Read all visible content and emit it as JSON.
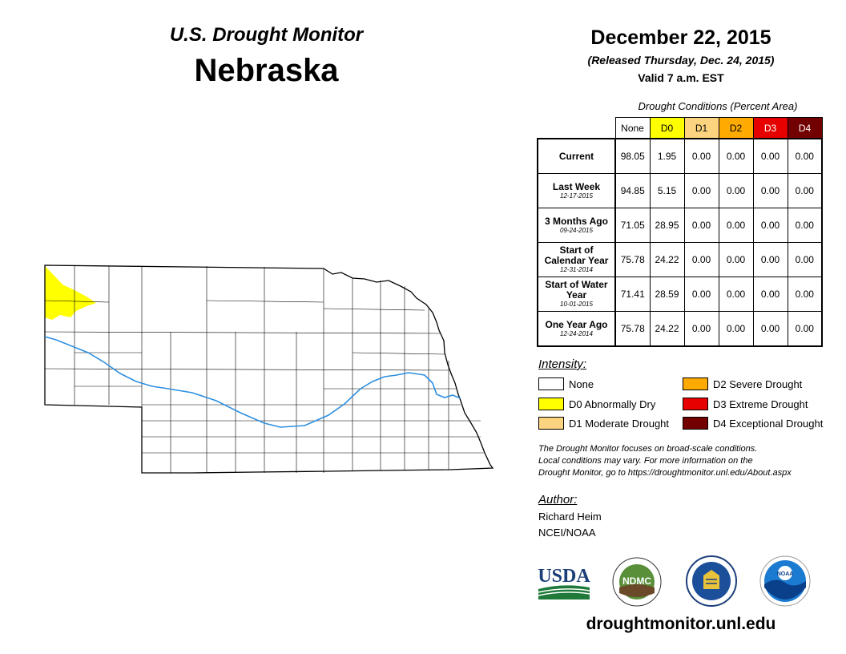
{
  "header": {
    "monitor_title": "U.S. Drought Monitor",
    "state": "Nebraska",
    "date": "December 22, 2015",
    "released": "(Released Thursday, Dec. 24, 2015)",
    "valid": "Valid 7 a.m. EST"
  },
  "table": {
    "caption": "Drought Conditions (Percent Area)",
    "columns": [
      "None",
      "D0",
      "D1",
      "D2",
      "D3",
      "D4"
    ],
    "column_colors": [
      "#ffffff",
      "#ffff00",
      "#fcd37f",
      "#ffaa00",
      "#e60000",
      "#730000"
    ],
    "column_text_colors": [
      "#000000",
      "#000000",
      "#000000",
      "#000000",
      "#ffffff",
      "#ffffff"
    ],
    "rows": [
      {
        "label": "Current",
        "sub": "",
        "values": [
          "98.05",
          "1.95",
          "0.00",
          "0.00",
          "0.00",
          "0.00"
        ]
      },
      {
        "label": "Last Week",
        "sub": "12-17-2015",
        "values": [
          "94.85",
          "5.15",
          "0.00",
          "0.00",
          "0.00",
          "0.00"
        ]
      },
      {
        "label": "3 Months Ago",
        "sub": "09-24-2015",
        "values": [
          "71.05",
          "28.95",
          "0.00",
          "0.00",
          "0.00",
          "0.00"
        ]
      },
      {
        "label": "Start of Calendar Year",
        "sub": "12-31-2014",
        "values": [
          "75.78",
          "24.22",
          "0.00",
          "0.00",
          "0.00",
          "0.00"
        ]
      },
      {
        "label": "Start of Water Year",
        "sub": "10-01-2015",
        "values": [
          "71.41",
          "28.59",
          "0.00",
          "0.00",
          "0.00",
          "0.00"
        ]
      },
      {
        "label": "One Year Ago",
        "sub": "12-24-2014",
        "values": [
          "75.78",
          "24.22",
          "0.00",
          "0.00",
          "0.00",
          "0.00"
        ]
      }
    ]
  },
  "legend": {
    "title": "Intensity:",
    "items": [
      {
        "label": "None",
        "color": "#ffffff"
      },
      {
        "label": "D0 Abnormally Dry",
        "color": "#ffff00"
      },
      {
        "label": "D1 Moderate Drought",
        "color": "#fcd37f"
      },
      {
        "label": "D2 Severe Drought",
        "color": "#ffaa00"
      },
      {
        "label": "D3 Extreme Drought",
        "color": "#e60000"
      },
      {
        "label": "D4 Exceptional Drought",
        "color": "#730000"
      }
    ]
  },
  "note": {
    "line1": "The Drought Monitor focuses on broad-scale conditions.",
    "line2": "Local conditions may vary. For more information on the",
    "line3": "Drought Monitor, go to https://droughtmonitor.unl.edu/About.aspx"
  },
  "author": {
    "title": "Author:",
    "name": "Richard Heim",
    "org": "NCEI/NOAA"
  },
  "logos": {
    "usda": "USDA",
    "ndmc": "NDMC",
    "noaa": "NOAA"
  },
  "footer": {
    "url": "droughtmonitor.unl.edu"
  },
  "map": {
    "d0_color": "#ffff00",
    "river_color": "#2e8fe0"
  }
}
